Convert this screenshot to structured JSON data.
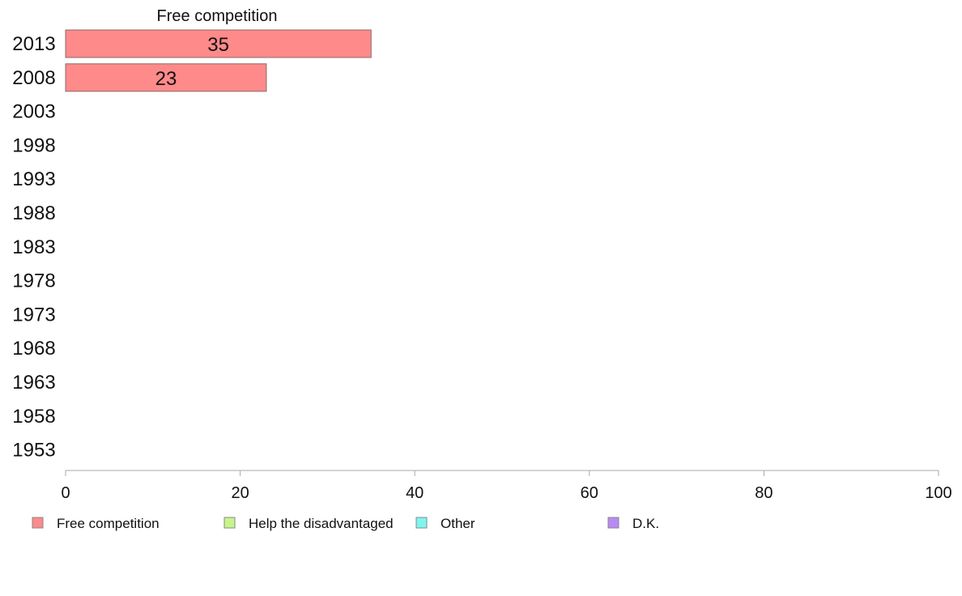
{
  "chart_data": {
    "type": "bar",
    "orientation": "horizontal",
    "categories": [
      "2013",
      "2008",
      "2003",
      "1998",
      "1993",
      "1988",
      "1983",
      "1978",
      "1973",
      "1968",
      "1963",
      "1958",
      "1953"
    ],
    "series": [
      {
        "name": "Free competition",
        "color": "#ff8a8a",
        "values": [
          35,
          23,
          null,
          null,
          null,
          null,
          null,
          null,
          null,
          null,
          null,
          null,
          null
        ]
      },
      {
        "name": "Help the disadvantaged",
        "color": "#c8f58a",
        "values": [
          null,
          null,
          null,
          null,
          null,
          null,
          null,
          null,
          null,
          null,
          null,
          null,
          null
        ]
      },
      {
        "name": "Other",
        "color": "#80f5f0",
        "values": [
          null,
          null,
          null,
          null,
          null,
          null,
          null,
          null,
          null,
          null,
          null,
          null,
          null
        ]
      },
      {
        "name": "D.K.",
        "color": "#b98af5",
        "values": [
          null,
          null,
          null,
          null,
          null,
          null,
          null,
          null,
          null,
          null,
          null,
          null,
          null
        ]
      }
    ],
    "series_title": "Free competition",
    "xlim": [
      0,
      100
    ],
    "xticks": [
      0,
      20,
      40,
      60,
      80,
      100
    ],
    "xtick_labels": [
      "0",
      "20",
      "40",
      "60",
      "80",
      "100"
    ],
    "grid": false,
    "legend_position": "bottom-left"
  }
}
